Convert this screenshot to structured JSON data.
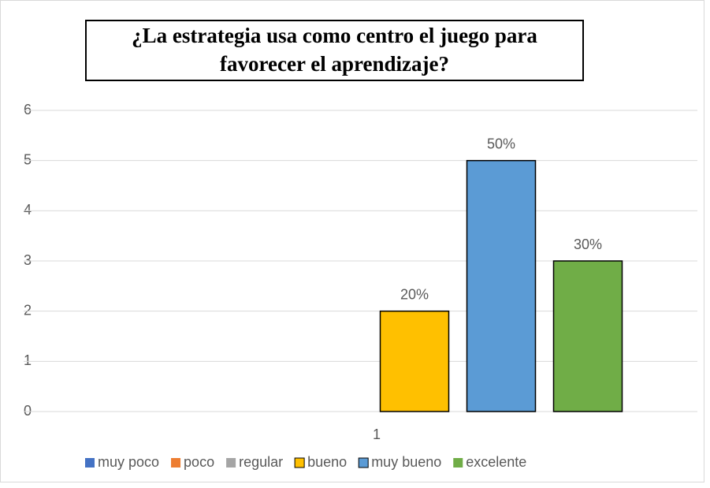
{
  "chart_data": {
    "type": "bar",
    "title": "¿La estrategia usa como centro el juego para favorecer el aprendizaje?",
    "categories": [
      "1"
    ],
    "series": [
      {
        "name": "muy poco",
        "color": "#4472c4",
        "values": [
          0
        ]
      },
      {
        "name": "poco",
        "color": "#ed7d31",
        "values": [
          0
        ]
      },
      {
        "name": "regular",
        "color": "#a5a5a5",
        "values": [
          0
        ]
      },
      {
        "name": "bueno",
        "color": "#ffc000",
        "values": [
          2
        ],
        "value_labels": [
          "20%"
        ]
      },
      {
        "name": "muy bueno",
        "color": "#5b9bd5",
        "values": [
          5
        ],
        "value_labels": [
          "50%"
        ]
      },
      {
        "name": "excelente",
        "color": "#70ad47",
        "values": [
          3
        ],
        "value_labels": [
          "30%"
        ]
      }
    ],
    "ylim": [
      0,
      6
    ],
    "yticks": [
      0,
      1,
      2,
      3,
      4,
      5,
      6
    ],
    "grid": true,
    "legend": "bottom"
  }
}
